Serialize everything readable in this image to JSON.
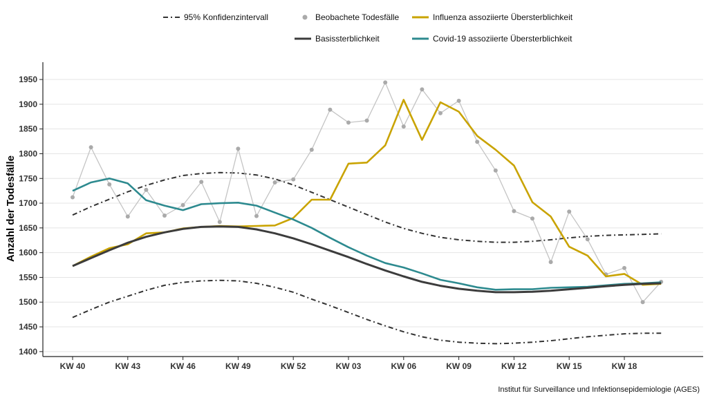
{
  "chart_data": {
    "type": "line",
    "title": "",
    "xlabel": "",
    "ylabel": "Anzahl der Todesfälle",
    "caption": "Institut für Surveillance und Infektionsepidemiologie (AGES)",
    "ylim": [
      1390,
      1985
    ],
    "yticks": [
      1400,
      1450,
      1500,
      1550,
      1600,
      1650,
      1700,
      1750,
      1800,
      1850,
      1900,
      1950
    ],
    "xticks": [
      {
        "label": "KW 40",
        "index": 0
      },
      {
        "label": "KW 43",
        "index": 3
      },
      {
        "label": "KW 46",
        "index": 6
      },
      {
        "label": "KW 49",
        "index": 9
      },
      {
        "label": "KW 52",
        "index": 12
      },
      {
        "label": "KW 03",
        "index": 15
      },
      {
        "label": "KW 06",
        "index": 18
      },
      {
        "label": "KW 09",
        "index": 21
      },
      {
        "label": "KW 12",
        "index": 24
      },
      {
        "label": "KW 15",
        "index": 27
      },
      {
        "label": "KW 18",
        "index": 30
      }
    ],
    "weeks": [
      "KW 40",
      "KW 41",
      "KW 42",
      "KW 43",
      "KW 44",
      "KW 45",
      "KW 46",
      "KW 47",
      "KW 48",
      "KW 49",
      "KW 50",
      "KW 51",
      "KW 52",
      "KW 01",
      "KW 02",
      "KW 03",
      "KW 04",
      "KW 05",
      "KW 06",
      "KW 07",
      "KW 08",
      "KW 09",
      "KW 10",
      "KW 11",
      "KW 12",
      "KW 13",
      "KW 14",
      "KW 15",
      "KW 16",
      "KW 17",
      "KW 18",
      "KW 19",
      "KW 20"
    ],
    "grid": true,
    "legend_position": "top",
    "series": [
      {
        "name": "95% Konfidenzintervall",
        "key": "ci_upper",
        "style": "dashdot",
        "color": "#333333",
        "values": [
          1676,
          1693,
          1708,
          1723,
          1736,
          1747,
          1756,
          1760,
          1762,
          1761,
          1757,
          1749,
          1737,
          1722,
          1707,
          1692,
          1677,
          1662,
          1649,
          1639,
          1631,
          1626,
          1623,
          1621,
          1621,
          1623,
          1626,
          1630,
          1633,
          1635,
          1636,
          1637,
          1638
        ]
      },
      {
        "name": "95% Konfidenzintervall",
        "key": "ci_lower",
        "style": "dashdot",
        "color": "#333333",
        "values": [
          1469,
          1485,
          1500,
          1512,
          1524,
          1534,
          1540,
          1543,
          1544,
          1543,
          1538,
          1530,
          1520,
          1506,
          1493,
          1479,
          1465,
          1452,
          1440,
          1430,
          1423,
          1419,
          1417,
          1416,
          1417,
          1419,
          1422,
          1426,
          1430,
          1433,
          1436,
          1437,
          1437
        ]
      },
      {
        "name": "Beobachete Todesfälle",
        "key": "observed",
        "style": "points",
        "color": "#aaaaaa",
        "values": [
          1712,
          1813,
          1738,
          1673,
          1727,
          1675,
          1696,
          1743,
          1662,
          1810,
          1674,
          1742,
          1748,
          1808,
          1889,
          1863,
          1867,
          1944,
          1855,
          1930,
          1882,
          1907,
          1824,
          1766,
          1684,
          1669,
          1581,
          1683,
          1627,
          1556,
          1569,
          1500,
          1541
        ]
      },
      {
        "name": "Influenza assoziierte Übersterblichkeit",
        "key": "influenza",
        "style": "line",
        "color": "#c9a300",
        "values": [
          1573,
          1592,
          1609,
          1617,
          1639,
          1641,
          1649,
          1652,
          1654,
          1653,
          1654,
          1655,
          1670,
          1707,
          1707,
          1780,
          1782,
          1817,
          1909,
          1828,
          1904,
          1885,
          1836,
          1808,
          1776,
          1702,
          1673,
          1612,
          1594,
          1552,
          1557,
          1535,
          1537
        ]
      },
      {
        "name": "Basissterblichkeit",
        "key": "baseline",
        "style": "line",
        "color": "#3c3c3c",
        "values": [
          1573,
          1589,
          1605,
          1620,
          1632,
          1641,
          1648,
          1652,
          1653,
          1652,
          1647,
          1639,
          1629,
          1617,
          1604,
          1591,
          1577,
          1564,
          1552,
          1541,
          1533,
          1527,
          1523,
          1520,
          1520,
          1521,
          1523,
          1526,
          1529,
          1532,
          1535,
          1537,
          1538
        ]
      },
      {
        "name": "Covid-19 assoziierte Übersterblichkeit",
        "key": "covid",
        "style": "line",
        "color": "#2d8a8f",
        "values": [
          1725,
          1742,
          1750,
          1740,
          1706,
          1695,
          1686,
          1698,
          1700,
          1701,
          1695,
          1681,
          1667,
          1650,
          1630,
          1611,
          1594,
          1579,
          1570,
          1558,
          1545,
          1538,
          1530,
          1525,
          1526,
          1526,
          1529,
          1530,
          1531,
          1534,
          1537,
          1538,
          1540
        ]
      }
    ]
  },
  "legend": [
    {
      "label": "95% Konfidenzintervall",
      "style": "dashdot",
      "color": "#333333"
    },
    {
      "label": "Beobachete Todesfälle",
      "style": "point",
      "color": "#aaaaaa"
    },
    {
      "label": "Influenza assoziierte Übersterblichkeit",
      "style": "line",
      "color": "#c9a300"
    },
    {
      "label": "Basissterblichkeit",
      "style": "line",
      "color": "#3c3c3c"
    },
    {
      "label": "Covid-19 assoziierte Übersterblichkeit",
      "style": "line",
      "color": "#2d8a8f"
    }
  ]
}
